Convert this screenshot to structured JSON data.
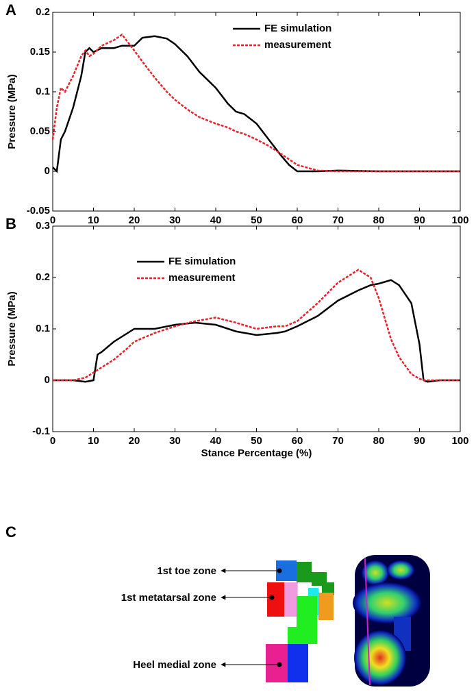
{
  "chart_data": [
    {
      "type": "line",
      "panel": "A",
      "ylabel": "Pressure (MPa)",
      "x": [
        0,
        1,
        2,
        3,
        5,
        7,
        8,
        9,
        10,
        12,
        15,
        17,
        20,
        22,
        25,
        28,
        30,
        33,
        36,
        40,
        43,
        45,
        47,
        50,
        53,
        56,
        58,
        60,
        65,
        70,
        80,
        90,
        100
      ],
      "series": [
        {
          "name": "FE simulation",
          "color": "#000000",
          "line_style": "solid",
          "values": [
            0.005,
            0.0,
            0.04,
            0.05,
            0.08,
            0.12,
            0.15,
            0.155,
            0.15,
            0.155,
            0.155,
            0.158,
            0.158,
            0.168,
            0.17,
            0.167,
            0.16,
            0.145,
            0.125,
            0.105,
            0.085,
            0.075,
            0.072,
            0.06,
            0.04,
            0.02,
            0.008,
            0,
            0,
            0.001,
            0,
            0,
            0
          ]
        },
        {
          "name": "measurement",
          "color": "#e8202a",
          "line_style": "dashed",
          "values": [
            0.04,
            0.08,
            0.105,
            0.1,
            0.12,
            0.145,
            0.152,
            0.145,
            0.148,
            0.158,
            0.165,
            0.172,
            0.152,
            0.138,
            0.118,
            0.1,
            0.09,
            0.078,
            0.068,
            0.06,
            0.055,
            0.05,
            0.047,
            0.04,
            0.032,
            0.022,
            0.015,
            0.008,
            0.001,
            0,
            0,
            0,
            0
          ]
        }
      ],
      "xlim": [
        0,
        100
      ],
      "xticks": [
        0,
        10,
        20,
        30,
        40,
        50,
        60,
        70,
        80,
        90,
        100
      ],
      "ylim": [
        -0.05,
        0.2
      ],
      "yticks": [
        -0.05,
        0,
        0.05,
        0.1,
        0.15,
        0.2
      ]
    },
    {
      "type": "line",
      "panel": "B",
      "ylabel": "Pressure (MPa)",
      "xlabel": "Stance Percentage (%)",
      "x": [
        0,
        5,
        8,
        10,
        11,
        12,
        15,
        18,
        20,
        25,
        30,
        35,
        40,
        45,
        50,
        55,
        57,
        60,
        65,
        70,
        75,
        78,
        80,
        83,
        85,
        88,
        90,
        91,
        92,
        95,
        100
      ],
      "series": [
        {
          "name": "FE simulation",
          "color": "#000000",
          "line_style": "solid",
          "values": [
            0,
            0,
            -0.003,
            0,
            0.05,
            0.055,
            0.075,
            0.09,
            0.1,
            0.1,
            0.108,
            0.112,
            0.108,
            0.095,
            0.088,
            0.092,
            0.095,
            0.105,
            0.125,
            0.155,
            0.175,
            0.185,
            0.188,
            0.195,
            0.185,
            0.15,
            0.07,
            0,
            -0.003,
            0,
            0
          ]
        },
        {
          "name": "measurement",
          "color": "#e8202a",
          "line_style": "dashed",
          "values": [
            0,
            0,
            0.005,
            0.015,
            0.02,
            0.025,
            0.04,
            0.06,
            0.075,
            0.092,
            0.105,
            0.115,
            0.122,
            0.112,
            0.1,
            0.105,
            0.105,
            0.115,
            0.15,
            0.19,
            0.215,
            0.2,
            0.16,
            0.08,
            0.045,
            0.012,
            0.003,
            0,
            0,
            0,
            0
          ]
        }
      ],
      "xlim": [
        0,
        100
      ],
      "xticks": [
        0,
        10,
        20,
        30,
        40,
        50,
        60,
        70,
        80,
        90,
        100
      ],
      "ylim": [
        -0.1,
        0.3
      ],
      "yticks": [
        -0.1,
        0,
        0.1,
        0.2,
        0.3
      ]
    }
  ],
  "panel_c": {
    "label": "C",
    "zones": [
      "1st toe zone",
      "1st metatarsal zone",
      "Heel medial zone"
    ]
  }
}
